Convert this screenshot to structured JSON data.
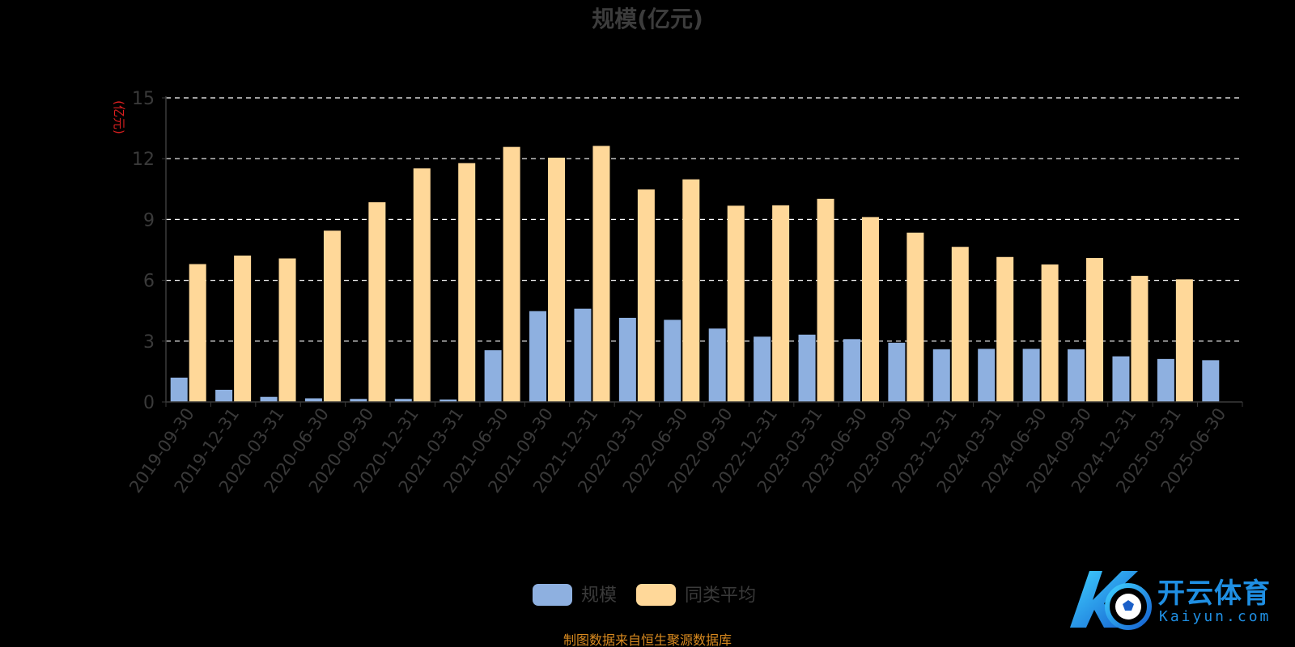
{
  "colors": {
    "series_1": "#8eb0e0",
    "series_2": "#ffd899",
    "axis_text": "#3a3a3a",
    "title": "#3c3c3c",
    "unit_label": "#e02020",
    "gridline": "#ffffff",
    "footer": "#d98a1f",
    "watermark": "#1f8fe3"
  },
  "chart_data": {
    "type": "bar",
    "title": "规模(亿元)",
    "ylabel": "(亿元)",
    "xlabel": "",
    "ylim": [
      0,
      15
    ],
    "yticks": [
      0,
      3,
      6,
      9,
      12,
      15
    ],
    "grid": true,
    "legend_position": "bottom-center",
    "categories": [
      "2019-09-30",
      "2019-12-31",
      "2020-03-31",
      "2020-06-30",
      "2020-09-30",
      "2020-12-31",
      "2021-03-31",
      "2021-06-30",
      "2021-09-30",
      "2021-12-31",
      "2022-03-31",
      "2022-06-30",
      "2022-09-30",
      "2022-12-31",
      "2023-03-31",
      "2023-06-30",
      "2023-09-30",
      "2023-12-31",
      "2024-03-31",
      "2024-06-30",
      "2024-09-30",
      "2024-12-31",
      "2025-03-31",
      "2025-06-30"
    ],
    "series": [
      {
        "name": "规模",
        "values": [
          1.2,
          0.6,
          0.25,
          0.18,
          0.15,
          0.15,
          0.12,
          2.55,
          4.48,
          4.6,
          4.15,
          4.05,
          3.62,
          3.22,
          3.32,
          3.1,
          2.92,
          2.6,
          2.62,
          2.62,
          2.6,
          2.25,
          2.12,
          2.06
        ]
      },
      {
        "name": "同类平均",
        "values": [
          6.8,
          7.22,
          7.08,
          8.45,
          9.85,
          11.52,
          11.78,
          12.58,
          12.05,
          12.63,
          10.48,
          10.98,
          9.68,
          9.7,
          10.02,
          9.12,
          8.35,
          7.65,
          7.15,
          6.78,
          7.1,
          6.22,
          6.05,
          null
        ]
      }
    ]
  },
  "footer": {
    "source_note": "制图数据来自恒生聚源数据库"
  },
  "watermark": {
    "brand": "开云体育",
    "domain": "Kaiyun.com"
  }
}
